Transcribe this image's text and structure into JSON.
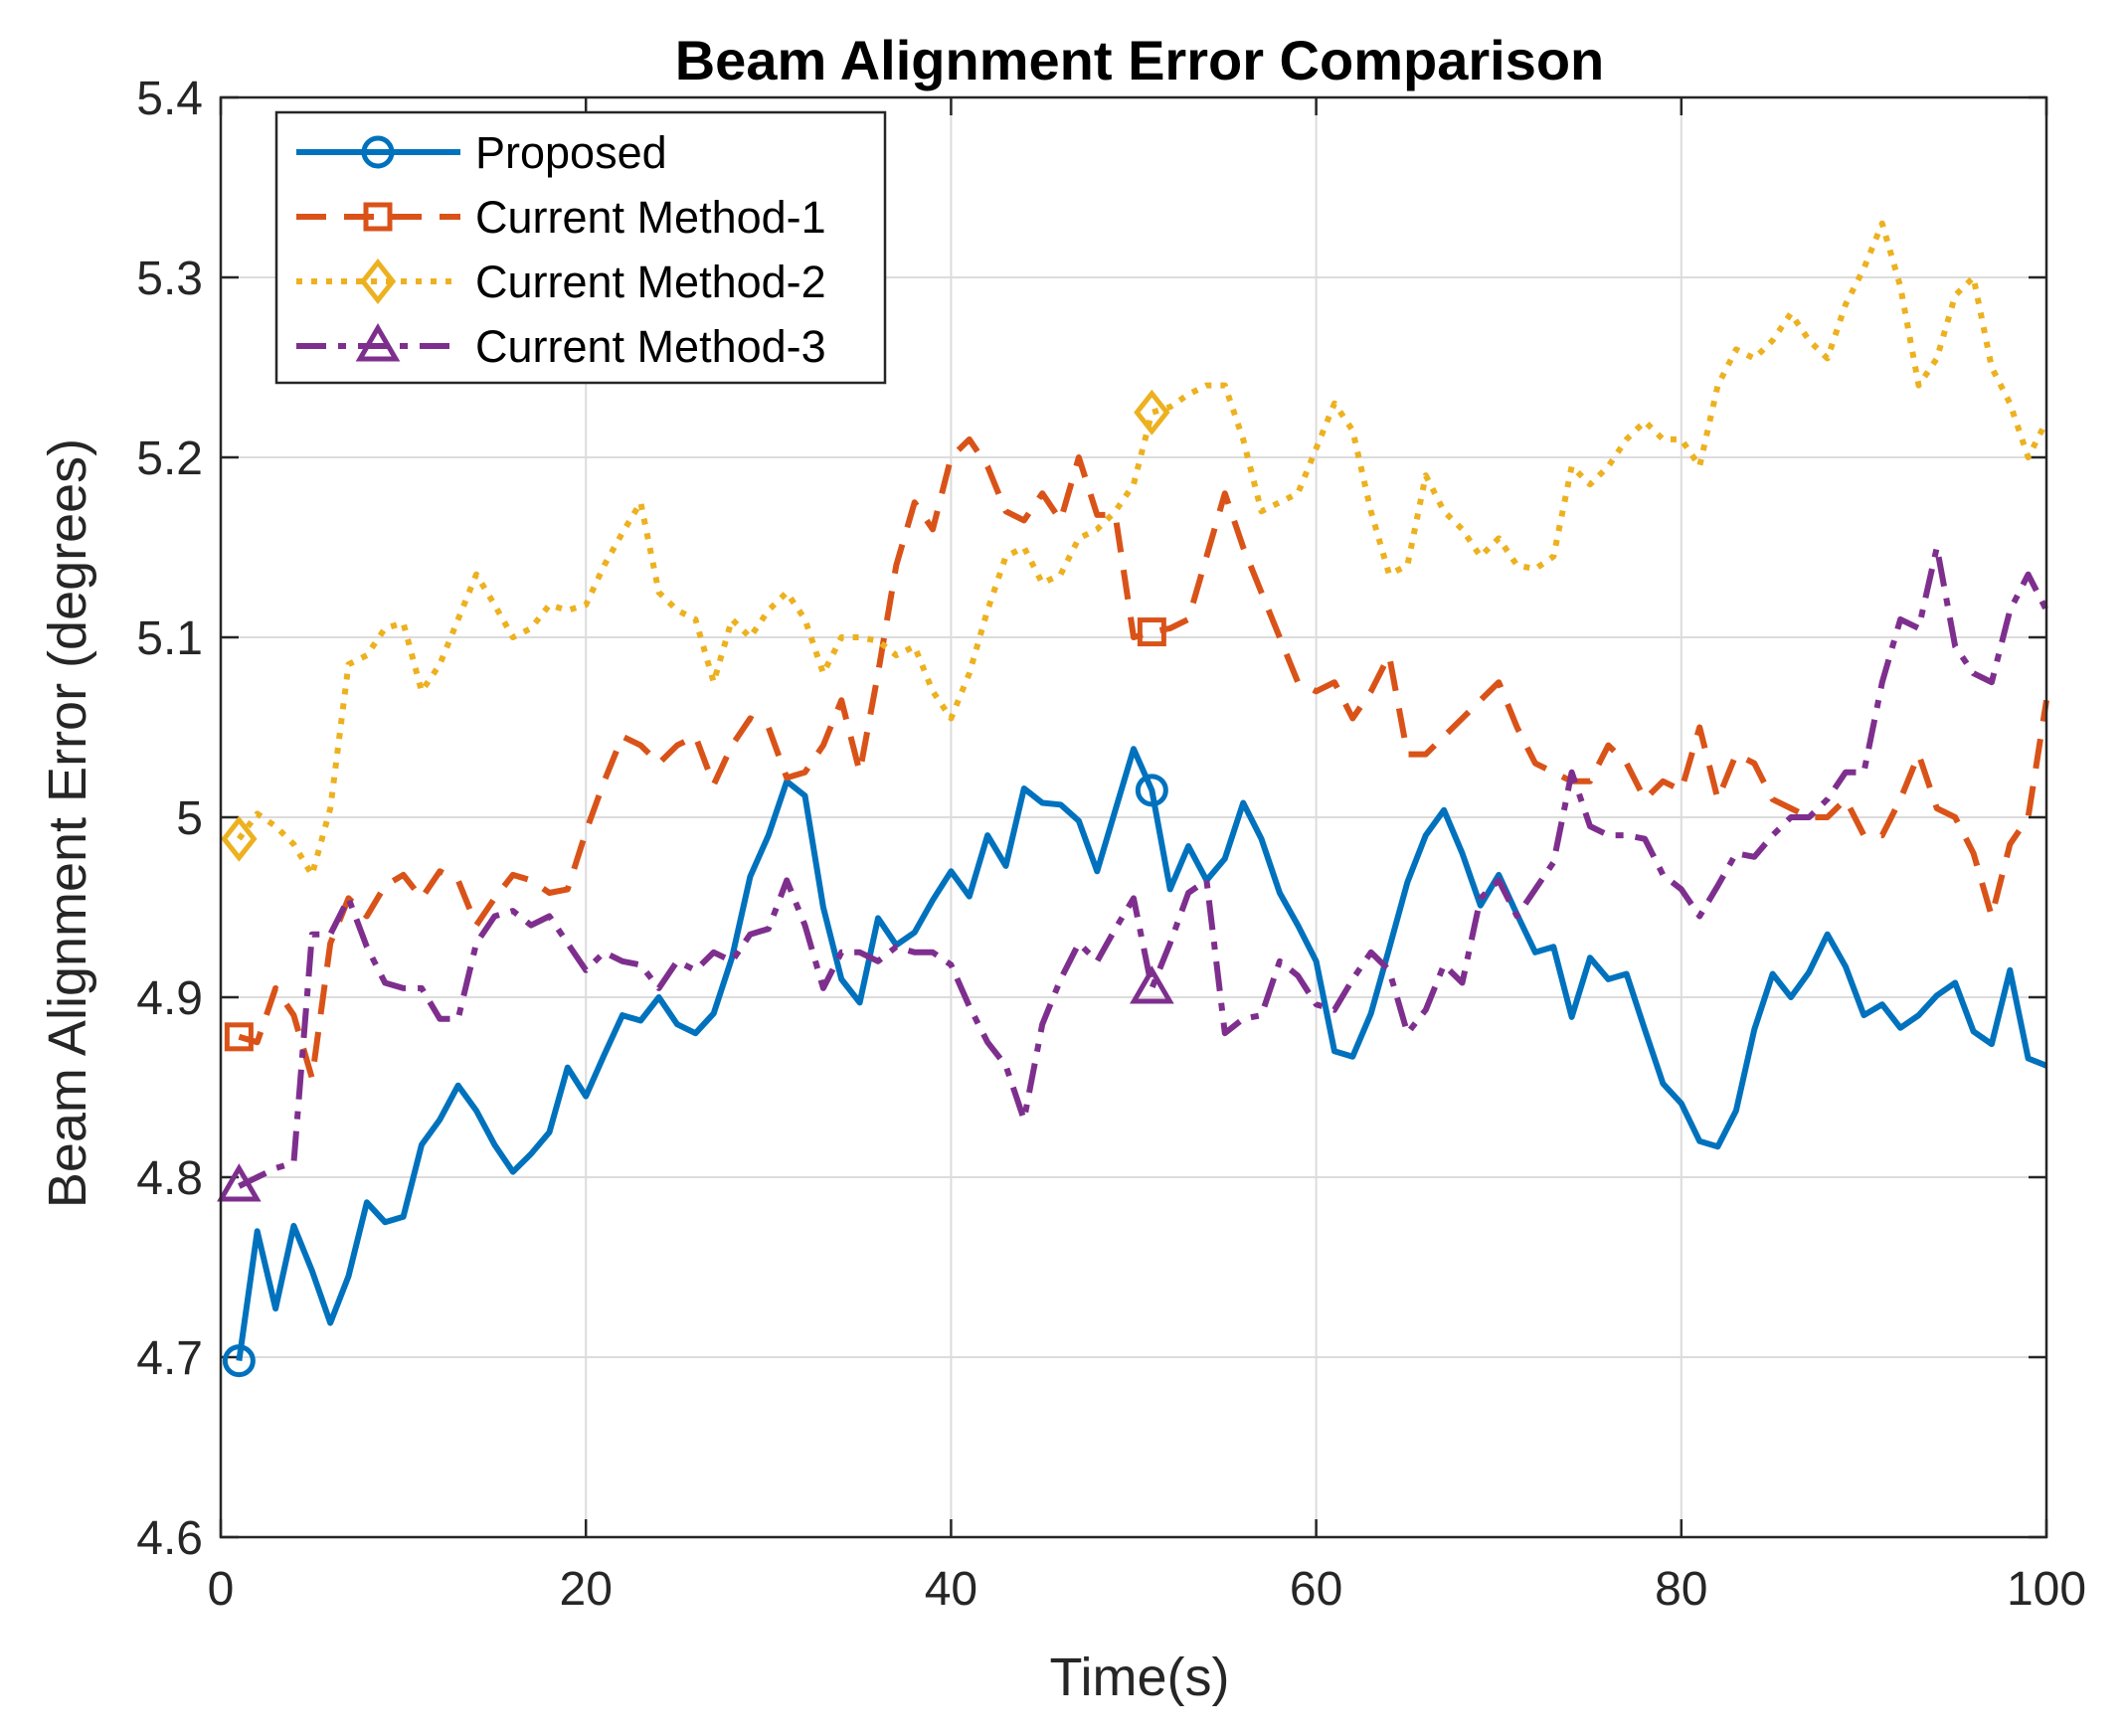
{
  "chart_data": {
    "type": "line",
    "title": "Beam Alignment Error Comparison",
    "xlabel": "Time(s)",
    "ylabel": "Beam Alignment Error (degrees)",
    "xlim": [
      0,
      100
    ],
    "ylim": [
      4.6,
      5.4
    ],
    "xticks": [
      0,
      20,
      40,
      60,
      80,
      100
    ],
    "xtick_labels": [
      "0",
      "20",
      "40",
      "60",
      "80",
      "100"
    ],
    "yticks": [
      4.6,
      4.7,
      4.8,
      4.9,
      5.0,
      5.1,
      5.2,
      5.3,
      5.4
    ],
    "ytick_labels": [
      "4.6",
      "4.7",
      "4.8",
      "4.9",
      "5",
      "5.1",
      "5.2",
      "5.3",
      "5.4"
    ],
    "grid": true,
    "legend_position": "top-left",
    "x": [
      1,
      2,
      3,
      4,
      5,
      6,
      7,
      8,
      9,
      10,
      11,
      12,
      13,
      14,
      15,
      16,
      17,
      18,
      19,
      20,
      21,
      22,
      23,
      24,
      25,
      26,
      27,
      28,
      29,
      30,
      31,
      32,
      33,
      34,
      35,
      36,
      37,
      38,
      39,
      40,
      41,
      42,
      43,
      44,
      45,
      46,
      47,
      48,
      49,
      50,
      51,
      52,
      53,
      54,
      55,
      56,
      57,
      58,
      59,
      60,
      61,
      62,
      63,
      64,
      65,
      66,
      67,
      68,
      69,
      70,
      71,
      72,
      73,
      74,
      75,
      76,
      77,
      78,
      79,
      80,
      81,
      82,
      83,
      84,
      85,
      86,
      87,
      88,
      89,
      90,
      91,
      92,
      93,
      94,
      95,
      96,
      97,
      98,
      99,
      100
    ],
    "marker_x": [
      1,
      51
    ],
    "series": [
      {
        "name": "Proposed",
        "color": "#0072BD",
        "dash": "solid",
        "marker": "circle",
        "values": [
          4.698,
          4.77,
          4.727,
          4.773,
          4.748,
          4.719,
          4.745,
          4.786,
          4.775,
          4.778,
          4.818,
          4.832,
          4.851,
          4.837,
          4.818,
          4.803,
          4.813,
          4.825,
          4.861,
          4.845,
          4.868,
          4.89,
          4.887,
          4.9,
          4.885,
          4.88,
          4.891,
          4.922,
          4.967,
          4.99,
          5.02,
          5.012,
          4.95,
          4.91,
          4.897,
          4.944,
          4.929,
          4.936,
          4.954,
          4.97,
          4.956,
          4.99,
          4.973,
          5.016,
          5.008,
          5.007,
          4.998,
          4.97,
          5.004,
          5.038,
          5.015,
          4.96,
          4.984,
          4.965,
          4.977,
          5.008,
          4.988,
          4.958,
          4.94,
          4.92,
          4.87,
          4.867,
          4.891,
          4.927,
          4.964,
          4.99,
          5.004,
          4.98,
          4.951,
          4.968,
          4.946,
          4.925,
          4.928,
          4.889,
          4.922,
          4.91,
          4.913,
          4.882,
          4.852,
          4.841,
          4.82,
          4.817,
          4.837,
          4.882,
          4.913,
          4.9,
          4.914,
          4.935,
          4.917,
          4.89,
          4.896,
          4.883,
          4.89,
          4.901,
          4.908,
          4.881,
          4.874,
          4.915,
          4.866,
          4.862
        ]
      },
      {
        "name": "Current Method-1",
        "color": "#D95319",
        "dash": "dashed",
        "marker": "square",
        "values": [
          4.878,
          4.875,
          4.905,
          4.89,
          4.855,
          4.93,
          4.955,
          4.945,
          4.962,
          4.968,
          4.955,
          4.97,
          4.965,
          4.94,
          4.955,
          4.968,
          4.965,
          4.958,
          4.96,
          4.992,
          5.02,
          5.045,
          5.04,
          5.03,
          5.04,
          5.045,
          5.018,
          5.04,
          5.055,
          5.05,
          5.022,
          5.025,
          5.04,
          5.065,
          5.025,
          5.08,
          5.14,
          5.175,
          5.16,
          5.2,
          5.21,
          5.195,
          5.17,
          5.165,
          5.18,
          5.165,
          5.2,
          5.168,
          5.168,
          5.1,
          5.103,
          5.105,
          5.11,
          5.145,
          5.18,
          5.15,
          5.125,
          5.1,
          5.075,
          5.07,
          5.075,
          5.055,
          5.07,
          5.09,
          5.035,
          5.035,
          5.045,
          5.055,
          5.065,
          5.075,
          5.05,
          5.03,
          5.025,
          5.02,
          5.02,
          5.04,
          5.03,
          5.01,
          5.02,
          5.015,
          5.05,
          5.01,
          5.035,
          5.03,
          5.01,
          5.005,
          5.0,
          5.0,
          5.01,
          4.99,
          4.99,
          5.01,
          5.035,
          5.005,
          5.0,
          4.98,
          4.945,
          4.985,
          5.0,
          5.065
        ]
      },
      {
        "name": "Current Method-2",
        "color": "#EDB120",
        "dash": "dotted",
        "marker": "diamond",
        "values": [
          4.988,
          5.002,
          4.995,
          4.985,
          4.968,
          5.005,
          5.085,
          5.09,
          5.105,
          5.108,
          5.07,
          5.085,
          5.11,
          5.135,
          5.118,
          5.1,
          5.105,
          5.118,
          5.115,
          5.118,
          5.14,
          5.158,
          5.175,
          5.125,
          5.115,
          5.11,
          5.075,
          5.11,
          5.1,
          5.115,
          5.125,
          5.11,
          5.08,
          5.1,
          5.1,
          5.098,
          5.09,
          5.095,
          5.07,
          5.055,
          5.08,
          5.115,
          5.145,
          5.15,
          5.13,
          5.135,
          5.155,
          5.16,
          5.17,
          5.185,
          5.225,
          5.228,
          5.235,
          5.24,
          5.24,
          5.21,
          5.17,
          5.175,
          5.18,
          5.205,
          5.23,
          5.215,
          5.17,
          5.135,
          5.14,
          5.19,
          5.17,
          5.16,
          5.145,
          5.155,
          5.14,
          5.138,
          5.145,
          5.195,
          5.185,
          5.195,
          5.21,
          5.22,
          5.21,
          5.21,
          5.195,
          5.24,
          5.26,
          5.255,
          5.265,
          5.28,
          5.265,
          5.255,
          5.285,
          5.305,
          5.33,
          5.295,
          5.24,
          5.255,
          5.29,
          5.3,
          5.25,
          5.23,
          5.2,
          5.22
        ]
      },
      {
        "name": "Current Method-3",
        "color": "#7E2F8E",
        "dash": "dashdot",
        "marker": "triangle",
        "values": [
          4.795,
          4.8,
          4.805,
          4.808,
          4.935,
          4.935,
          4.955,
          4.928,
          4.908,
          4.905,
          4.905,
          4.888,
          4.888,
          4.93,
          4.945,
          4.948,
          4.94,
          4.945,
          4.93,
          4.915,
          4.925,
          4.92,
          4.918,
          4.905,
          4.92,
          4.915,
          4.925,
          4.92,
          4.935,
          4.938,
          4.965,
          4.94,
          4.905,
          4.925,
          4.925,
          4.92,
          4.928,
          4.925,
          4.925,
          4.918,
          4.895,
          4.875,
          4.862,
          4.832,
          4.885,
          4.91,
          4.93,
          4.92,
          4.938,
          4.955,
          4.905,
          4.93,
          4.958,
          4.965,
          4.88,
          4.888,
          4.89,
          4.92,
          4.912,
          4.896,
          4.893,
          4.91,
          4.925,
          4.915,
          4.88,
          4.893,
          4.918,
          4.908,
          4.955,
          4.965,
          4.945,
          4.96,
          4.975,
          5.025,
          4.995,
          4.99,
          4.99,
          4.988,
          4.968,
          4.96,
          4.945,
          4.962,
          4.98,
          4.978,
          4.99,
          5.0,
          5.0,
          5.01,
          5.025,
          5.025,
          5.075,
          5.11,
          5.105,
          5.15,
          5.095,
          5.08,
          5.075,
          5.115,
          5.135,
          5.115
        ]
      }
    ]
  }
}
